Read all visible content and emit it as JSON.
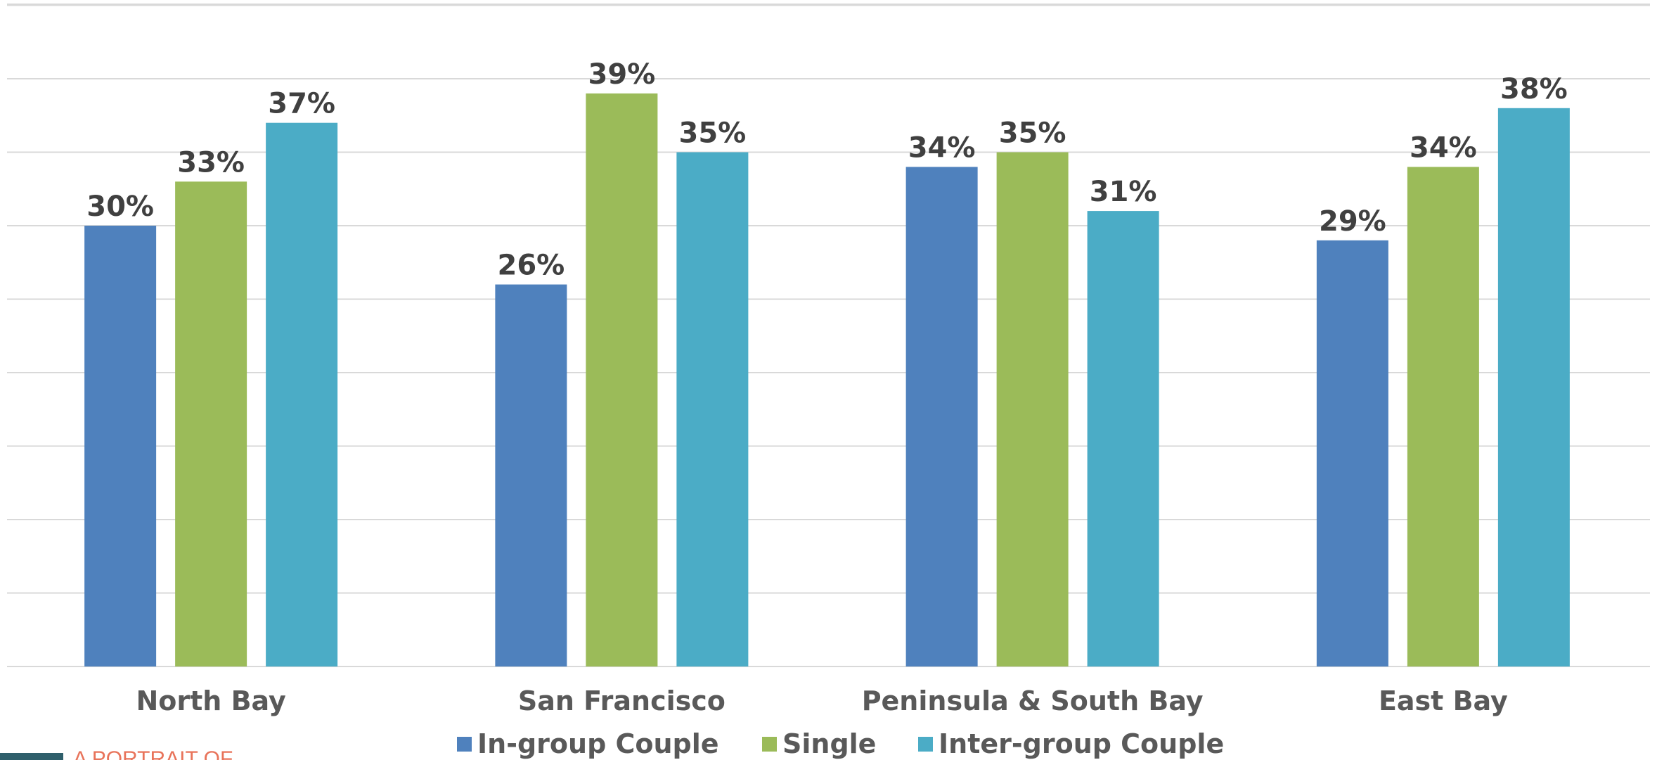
{
  "chart_data": {
    "type": "bar",
    "categories": [
      "North Bay",
      "San Francisco",
      "Peninsula & South Bay",
      "East Bay"
    ],
    "series": [
      {
        "name": "In-group Couple",
        "color": "#4f81bd",
        "values": [
          30,
          26,
          34,
          29
        ],
        "labels": [
          "30%",
          "26%",
          "34%",
          "29%"
        ]
      },
      {
        "name": "Single",
        "color": "#9bbb59",
        "values": [
          33,
          39,
          35,
          34
        ],
        "labels": [
          "33%",
          "39%",
          "35%",
          "34%"
        ]
      },
      {
        "name": "Inter-group Couple",
        "color": "#4bacc6",
        "values": [
          37,
          35,
          31,
          38
        ],
        "labels": [
          "37%",
          "35%",
          "31%",
          "38%"
        ]
      }
    ],
    "ylim": [
      0,
      45
    ],
    "grid": true,
    "legend_position": "bottom",
    "title": "",
    "xlabel": "",
    "ylabel": ""
  },
  "footer": {
    "text": "A PORTRAIT OF"
  }
}
